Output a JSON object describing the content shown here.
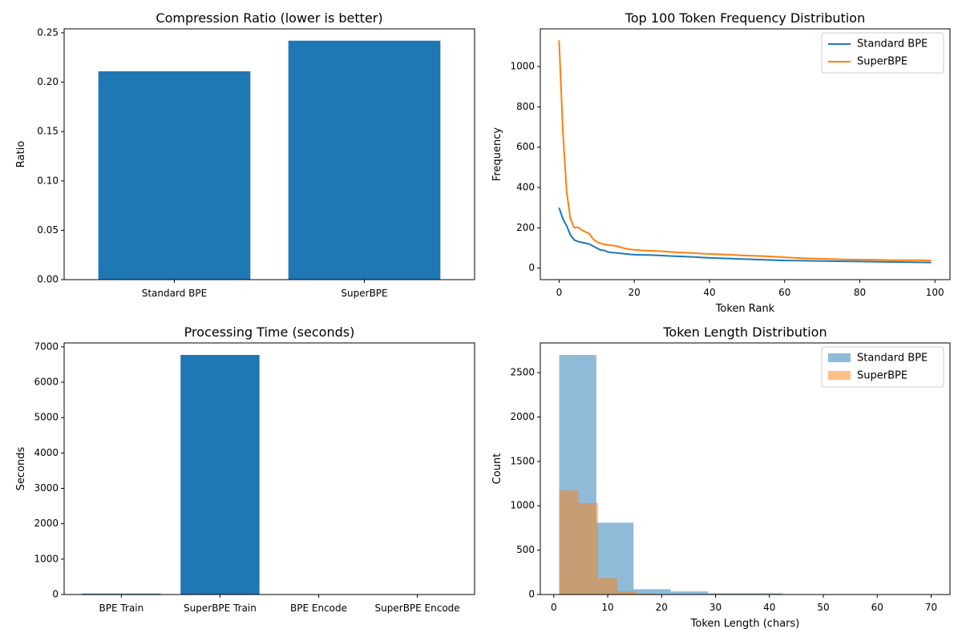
{
  "chart_data": [
    {
      "type": "bar",
      "title": "Compression Ratio (lower is better)",
      "xlabel": "",
      "ylabel": "Ratio",
      "categories": [
        "Standard BPE",
        "SuperBPE"
      ],
      "values": [
        0.211,
        0.242
      ],
      "ylim": [
        0,
        0.254
      ],
      "yticks": [
        0.0,
        0.05,
        0.1,
        0.15,
        0.2,
        0.25
      ],
      "ytick_labels": [
        "0.00",
        "0.05",
        "0.10",
        "0.15",
        "0.20",
        "0.25"
      ],
      "color": "#1f77b4",
      "grid": false
    },
    {
      "type": "line",
      "title": "Top 100 Token Frequency Distribution",
      "xlabel": "Token Rank",
      "ylabel": "Frequency",
      "xlim": [
        -5,
        104
      ],
      "ylim": [
        -57,
        1187
      ],
      "xticks": [
        0,
        20,
        40,
        60,
        80,
        100
      ],
      "yticks": [
        0,
        200,
        400,
        600,
        800,
        1000
      ],
      "legend_position": "top-right",
      "grid": false,
      "series": [
        {
          "name": "Standard BPE",
          "color": "#1f77b4",
          "x": [
            0,
            1,
            2,
            3,
            4,
            5,
            6,
            7,
            8,
            9,
            10,
            11,
            12,
            13,
            14,
            15,
            16,
            17,
            18,
            19,
            20,
            22,
            24,
            26,
            28,
            30,
            33,
            36,
            39,
            42,
            45,
            48,
            51,
            54,
            57,
            60,
            64,
            68,
            72,
            76,
            80,
            84,
            88,
            92,
            96,
            99
          ],
          "values": [
            300,
            245,
            210,
            165,
            140,
            132,
            128,
            124,
            120,
            110,
            100,
            90,
            88,
            80,
            77,
            76,
            74,
            72,
            70,
            68,
            67,
            66,
            65,
            64,
            62,
            60,
            58,
            55,
            52,
            50,
            48,
            46,
            44,
            42,
            40,
            38,
            37,
            36,
            35,
            34,
            33,
            32,
            31,
            30,
            29,
            28
          ]
        },
        {
          "name": "SuperBPE",
          "color": "#ff7f0e",
          "x": [
            0,
            1,
            2,
            3,
            4,
            5,
            6,
            7,
            8,
            9,
            10,
            11,
            12,
            13,
            14,
            15,
            16,
            17,
            18,
            19,
            20,
            22,
            24,
            26,
            28,
            30,
            33,
            36,
            39,
            42,
            45,
            48,
            51,
            54,
            57,
            60,
            64,
            68,
            72,
            76,
            80,
            84,
            88,
            92,
            96,
            99
          ],
          "values": [
            1130,
            680,
            380,
            245,
            200,
            203,
            190,
            180,
            172,
            145,
            130,
            123,
            118,
            115,
            113,
            110,
            106,
            100,
            96,
            93,
            91,
            88,
            86,
            85,
            83,
            80,
            77,
            74,
            71,
            69,
            67,
            64,
            62,
            60,
            57,
            54,
            50,
            47,
            45,
            43,
            42,
            41,
            40,
            39,
            39,
            38
          ]
        }
      ]
    },
    {
      "type": "bar",
      "title": "Processing Time (seconds)",
      "xlabel": "",
      "ylabel": "Seconds",
      "categories": [
        "BPE Train",
        "SuperBPE Train",
        "BPE Encode",
        "SuperBPE Encode"
      ],
      "values": [
        25,
        6770,
        2,
        3
      ],
      "ylim": [
        0,
        7110
      ],
      "yticks": [
        0,
        1000,
        2000,
        3000,
        4000,
        5000,
        6000,
        7000
      ],
      "color": "#1f77b4",
      "grid": false
    },
    {
      "type": "histogram",
      "title": "Token Length Distribution",
      "xlabel": "Token Length (chars)",
      "ylabel": "Count",
      "xlim": [
        -2.5,
        73.5
      ],
      "ylim": [
        0,
        2835
      ],
      "xticks": [
        0,
        10,
        20,
        30,
        40,
        50,
        60,
        70
      ],
      "yticks": [
        0,
        500,
        1000,
        1500,
        2000,
        2500
      ],
      "legend_position": "top-right",
      "grid": false,
      "series": [
        {
          "name": "Standard BPE",
          "color": "#1f77b4",
          "opacity": 0.5,
          "bin_edges": [
            1.0,
            7.9,
            14.8,
            21.7,
            28.6,
            35.5,
            42.4,
            49.3,
            56.2,
            63.1,
            70.0
          ],
          "counts": [
            2700,
            810,
            60,
            35,
            15,
            15,
            3,
            2,
            1,
            1
          ]
        },
        {
          "name": "SuperBPE",
          "color": "#ff7f0e",
          "opacity": 0.5,
          "bin_edges": [
            1.0,
            4.6,
            8.2,
            11.8,
            15.4,
            19.0,
            22.6,
            26.2,
            29.8,
            33.4,
            37.0
          ],
          "counts": [
            1175,
            1030,
            185,
            35,
            10,
            5,
            2,
            1,
            1,
            1
          ]
        }
      ]
    }
  ]
}
